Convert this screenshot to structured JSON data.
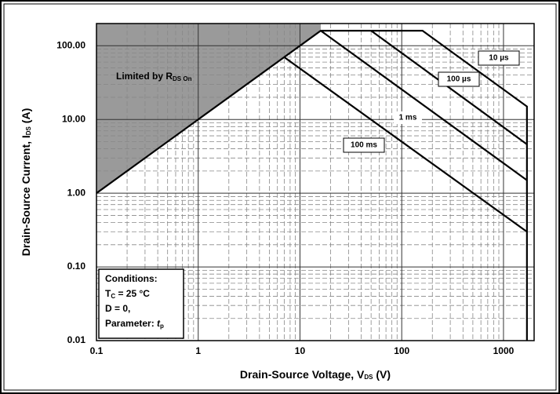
{
  "chart_data": {
    "type": "line",
    "log_x": true,
    "log_y": true,
    "grid": true,
    "x_label": [
      "Drain-Source Voltage, V",
      "DS",
      " (V)"
    ],
    "y_label": [
      "Drain-Source Current, I",
      "DS",
      " (A)"
    ],
    "xlim": [
      0.1,
      2000
    ],
    "ylim": [
      0.01,
      200
    ],
    "xticks": [
      0.1,
      1,
      10,
      100,
      1000
    ],
    "yticks": [
      {
        "value": 0.01,
        "label": "0.01"
      },
      {
        "value": 0.1,
        "label": "0.10"
      },
      {
        "value": 1,
        "label": "1.00"
      },
      {
        "value": 10,
        "label": "10.00"
      },
      {
        "value": 100,
        "label": "100.00"
      }
    ],
    "series": [
      {
        "name": "10 µs",
        "color": "#000000",
        "x": [
          0.1,
          16,
          160,
          1700,
          1700
        ],
        "values": [
          1,
          160,
          160,
          15,
          0.01
        ]
      },
      {
        "name": "100 µs",
        "color": "#000000",
        "x": [
          50,
          1700
        ],
        "values": [
          160,
          4.6
        ]
      },
      {
        "name": "1 ms",
        "color": "#000000",
        "x": [
          16,
          1700
        ],
        "values": [
          160,
          1.5
        ]
      },
      {
        "name": "100 ms",
        "color": "#000000",
        "x": [
          7,
          1700
        ],
        "values": [
          70,
          0.3
        ]
      }
    ],
    "region_label": [
      "Limited by R",
      "DS On"
    ],
    "conditions": [
      [
        "Conditions:"
      ],
      [
        "T",
        "C",
        " = 25 °C"
      ],
      [
        "D = 0,"
      ],
      [
        "Parameter: ",
        "t",
        "p"
      ]
    ]
  }
}
